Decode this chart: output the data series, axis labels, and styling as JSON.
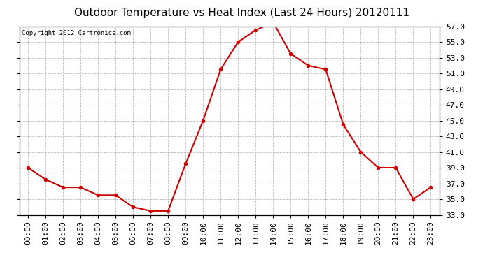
{
  "title": "Outdoor Temperature vs Heat Index (Last 24 Hours) 20120111",
  "copyright_text": "Copyright 2012 Cartronics.com",
  "x_labels": [
    "00:00",
    "01:00",
    "02:00",
    "03:00",
    "04:00",
    "05:00",
    "06:00",
    "07:00",
    "08:00",
    "09:00",
    "10:00",
    "11:00",
    "12:00",
    "13:00",
    "14:00",
    "15:00",
    "16:00",
    "17:00",
    "18:00",
    "19:00",
    "20:00",
    "21:00",
    "22:00",
    "23:00"
  ],
  "y_values": [
    39.0,
    37.5,
    36.5,
    36.5,
    35.5,
    35.5,
    34.0,
    33.5,
    33.5,
    39.5,
    45.0,
    51.5,
    55.0,
    56.5,
    57.5,
    53.5,
    52.0,
    51.5,
    44.5,
    41.0,
    39.0,
    39.0,
    35.0,
    36.5
  ],
  "line_color": "#cc0000",
  "marker": "o",
  "marker_color": "#cc0000",
  "marker_size": 3,
  "background_color": "#ffffff",
  "plot_bg_color": "#ffffff",
  "grid_color": "#bbbbbb",
  "ylim": [
    33.0,
    57.0
  ],
  "ytick_values": [
    33.0,
    35.0,
    37.0,
    39.0,
    41.0,
    43.0,
    45.0,
    47.0,
    49.0,
    51.0,
    53.0,
    55.0,
    57.0
  ],
  "title_fontsize": 11,
  "tick_fontsize": 8,
  "copyright_fontsize": 6.5,
  "line_width": 1.5,
  "figsize": [
    6.9,
    3.75
  ],
  "dpi": 100
}
